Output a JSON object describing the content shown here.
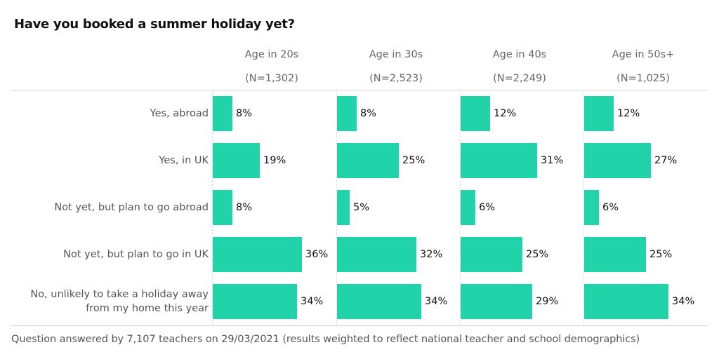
{
  "chart_data": {
    "type": "bar",
    "orientation": "horizontal",
    "title": "Have you booked a summer holiday yet?",
    "categories": [
      "Yes, abroad",
      "Yes, in UK",
      "Not yet, but plan to go abroad",
      "Not yet, but plan to go in UK",
      "No, unlikely to take a holiday away from my home this year"
    ],
    "category_lines": [
      [
        "Yes, abroad"
      ],
      [
        "Yes, in UK"
      ],
      [
        "Not yet, but plan to go abroad"
      ],
      [
        "Not yet, but plan to go in UK"
      ],
      [
        "No, unlikely to take a holiday away",
        "from my home this year"
      ]
    ],
    "series": [
      {
        "name": "Age in 20s",
        "n_label": "(N=1,302)",
        "values": [
          8,
          19,
          8,
          36,
          34
        ],
        "labels": [
          "8%",
          "19%",
          "8%",
          "36%",
          "34%"
        ]
      },
      {
        "name": "Age in 30s",
        "n_label": "(N=2,523)",
        "values": [
          8,
          25,
          5,
          32,
          34
        ],
        "labels": [
          "8%",
          "25%",
          "5%",
          "32%",
          "34%"
        ]
      },
      {
        "name": "Age in 40s",
        "n_label": "(N=2,249)",
        "values": [
          12,
          31,
          6,
          25,
          29
        ],
        "labels": [
          "12%",
          "31%",
          "6%",
          "25%",
          "29%"
        ]
      },
      {
        "name": "Age in 50s+",
        "n_label": "(N=1,025)",
        "values": [
          12,
          27,
          6,
          25,
          34
        ],
        "labels": [
          "12%",
          "27%",
          "6%",
          "25%",
          "34%"
        ]
      }
    ],
    "unit": "%",
    "xlim": [
      0,
      100
    ],
    "grid": false,
    "legend": "none",
    "bar_color": "#20d3a8",
    "footnote": "Question answered by 7,107 teachers on 29/03/2021 (results weighted to reflect national teacher and school demographics)"
  }
}
